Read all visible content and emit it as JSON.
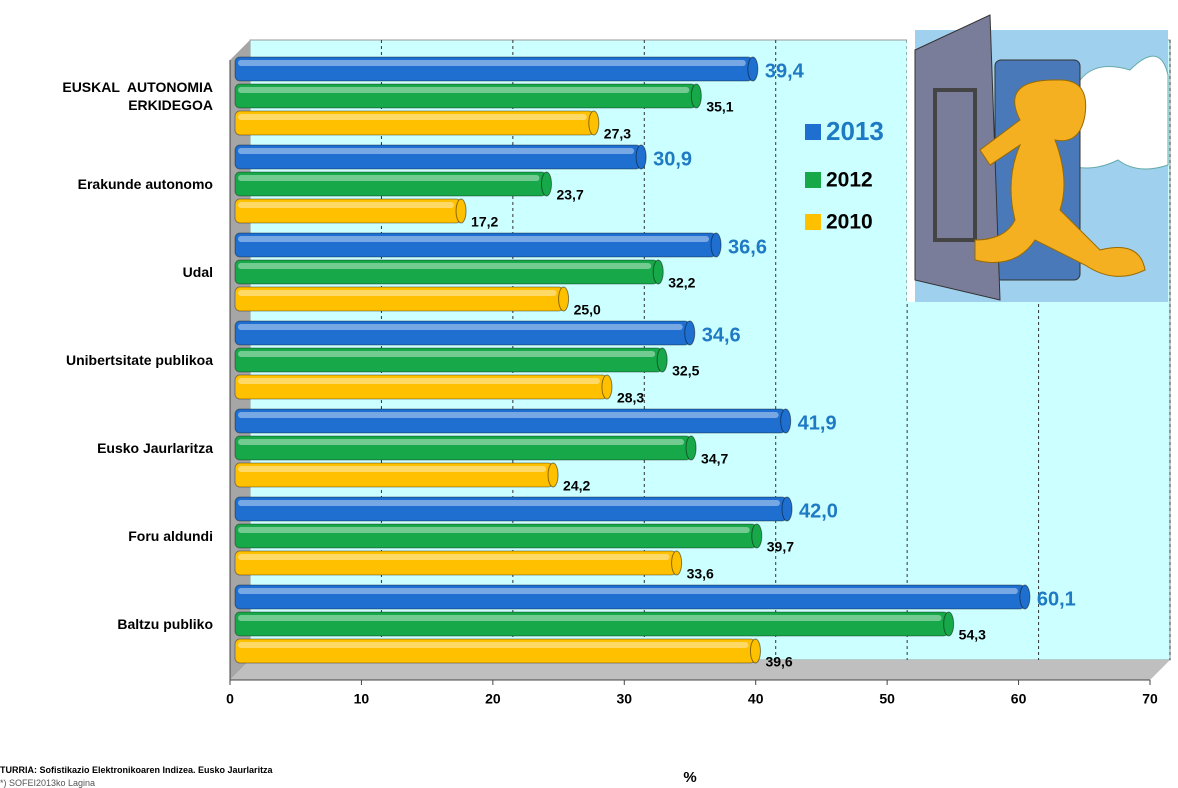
{
  "chart_data": {
    "type": "hbar",
    "categories": [
      "EUSKAL  AUTONOMIA ERKIDEGOA",
      "Erakunde autonomo",
      "Udal",
      "Unibertsitate publikoa",
      "Eusko Jaurlaritza",
      "Foru aldundi",
      "Baltzu publiko"
    ],
    "series": [
      {
        "name": "2013",
        "color": "#1f6fd0",
        "values": [
          39.4,
          30.9,
          36.6,
          34.6,
          41.9,
          42.0,
          60.1
        ],
        "value_labels": [
          "39,4",
          "30,9",
          "36,6",
          "34,6",
          "41,9",
          "42,0",
          "60,1"
        ]
      },
      {
        "name": "2012",
        "color": "#17a84a",
        "values": [
          35.1,
          23.7,
          32.2,
          32.5,
          34.7,
          39.7,
          54.3
        ],
        "value_labels": [
          "35,1",
          "23,7",
          "32,2",
          "32,5",
          "34,7",
          "39,7",
          "54,3"
        ]
      },
      {
        "name": "2010",
        "color": "#ffc000",
        "values": [
          27.3,
          17.2,
          25.0,
          28.3,
          24.2,
          33.6,
          39.6
        ],
        "value_labels": [
          "27,3",
          "17,2",
          "25,0",
          "28,3",
          "24,2",
          "33,6",
          "39,6"
        ]
      }
    ],
    "xlim": [
      0,
      70
    ],
    "xticks": [
      0,
      10,
      20,
      30,
      40,
      50,
      60,
      70
    ],
    "grid": true,
    "x_label": "%",
    "source": "TURRIA: Sofistikazio Elektronikoaren Indizea. Eusko Jaurlaritza",
    "note": "*) SOFEI2013ko Lagina"
  }
}
